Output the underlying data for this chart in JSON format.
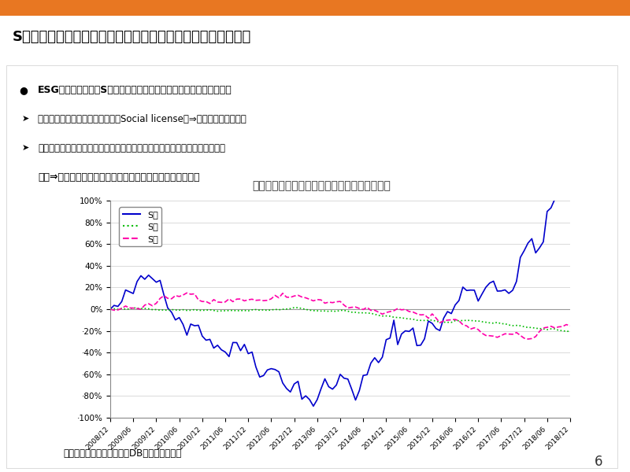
{
  "title": "S要因の株価パフォーマンス（企業価値向上）における重要性",
  "header_bg": "#E87722",
  "bullet_text_0": "ESG要因の中でも、S要因は企業価値と密接に結びついていると認識",
  "bullet_text_1": "ビジネスモデルの社会との適合（Social license）⇒今回は取り上げない",
  "bullet_text_2": "従業員との関係（人財育成により活力を高める）（従業員満足度ではない）",
  "bullet_text_3": "　　⇒人財戦略は、経営戦略の一環、そして、競争力の源泉",
  "chart_title": "Ｓレーティング累積超過リターン（単純平均）",
  "chart_bg": "#C8D8E8",
  "x_labels": [
    "2008/12",
    "2009/06",
    "2009/12",
    "2010/06",
    "2010/12",
    "2011/06",
    "2011/12",
    "2012/06",
    "2012/12",
    "2013/06",
    "2013/12",
    "2014/06",
    "2014/12",
    "2015/06",
    "2015/12",
    "2016/06",
    "2016/12",
    "2017/06",
    "2017/12",
    "2018/06",
    "2018/12"
  ],
  "source_text": "（出所）ニッセイアセットDBより、井口作成",
  "page_number": "6",
  "s1_color": "#0000CC",
  "s2_color": "#00BB00",
  "s3_color": "#FF00AA"
}
